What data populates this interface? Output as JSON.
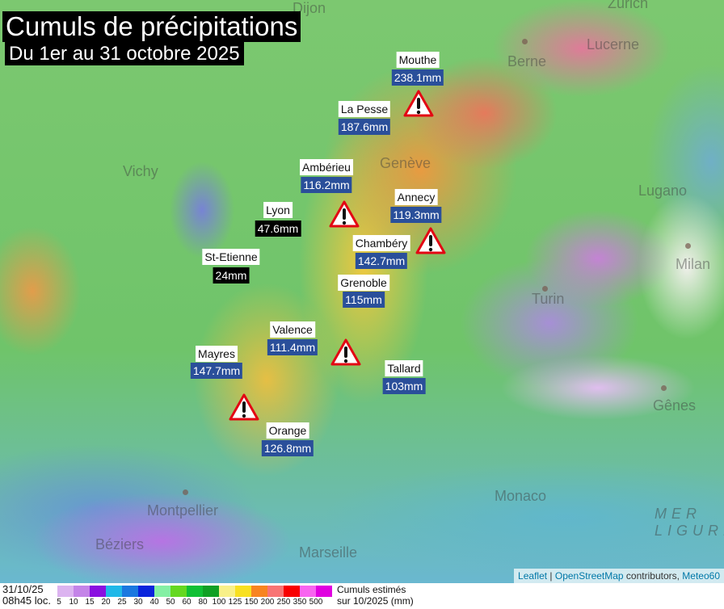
{
  "title": "Cumuls de précipitations",
  "subtitle": "Du 1er au 31 octobre 2025",
  "map_places": [
    "Dijon",
    "Zurich",
    "Berne",
    "Lucerne",
    "Genève",
    "Lugano",
    "Milan",
    "Turin",
    "Gênes",
    "Vichy",
    "Montpellier",
    "Béziers",
    "Marseille",
    "Monaco",
    "MER LIGURE"
  ],
  "stations": [
    {
      "name": "Mouthe",
      "value": "238.1mm"
    },
    {
      "name": "La Pesse",
      "value": "187.6mm"
    },
    {
      "name": "Ambérieu",
      "value": "116.2mm"
    },
    {
      "name": "Annecy",
      "value": "119.3mm"
    },
    {
      "name": "Lyon",
      "value": "47.6mm"
    },
    {
      "name": "Chambéry",
      "value": "142.7mm"
    },
    {
      "name": "St-Etienne",
      "value": "24mm"
    },
    {
      "name": "Grenoble",
      "value": "115mm"
    },
    {
      "name": "Valence",
      "value": "111.4mm"
    },
    {
      "name": "Tallard",
      "value": "103mm"
    },
    {
      "name": "Mayres",
      "value": "147.7mm"
    },
    {
      "name": "Orange",
      "value": "126.8mm"
    }
  ],
  "warning_icon": "warning-triangle-icon",
  "attribution": {
    "leaflet": "Leaflet",
    "sep": " | ",
    "osm": "OpenStreetMap",
    "contrib": " contributors, ",
    "meteo": "Meteo60"
  },
  "legend": {
    "date": "31/10/25",
    "time": "08h45 loc.",
    "ticks": [
      "5",
      "10",
      "15",
      "20",
      "25",
      "30",
      "40",
      "50",
      "60",
      "80",
      "100",
      "125",
      "150",
      "200",
      "250",
      "350",
      "500"
    ],
    "colors": [
      "#dcb4f0",
      "#c484e8",
      "#8a10e0",
      "#20b8e8",
      "#1a78e0",
      "#0a24dc",
      "#84f0a4",
      "#64d820",
      "#10c034",
      "#10a024",
      "#f8f088",
      "#f8e020",
      "#f88420",
      "#f87474",
      "#f80000",
      "#f864f0",
      "#e000e0"
    ],
    "unit_line1": "Cumuls estimés",
    "unit_line2": "sur 10/2025 (mm)"
  },
  "colors": {
    "value_box": "#2a4f9a",
    "low_value_box": "#000000",
    "warning_red": "#e30613"
  }
}
